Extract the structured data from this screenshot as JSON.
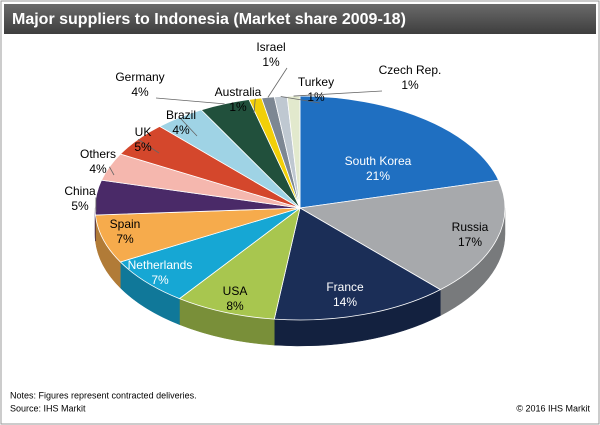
{
  "chart_data": {
    "type": "pie",
    "title": "Major suppliers to Indonesia (Market share 2009-18)",
    "categories": [
      "South Korea",
      "Russia",
      "France",
      "USA",
      "Netherlands",
      "Spain",
      "China",
      "Others",
      "UK",
      "Brazil",
      "Germany",
      "Australia",
      "Israel",
      "Turkey",
      "Czech Rep."
    ],
    "values": [
      21,
      17,
      14,
      8,
      7,
      7,
      5,
      4,
      5,
      4,
      4,
      1,
      1,
      1,
      1
    ],
    "value_labels": [
      "21%",
      "17%",
      "14%",
      "8%",
      "7%",
      "7%",
      "5%",
      "4%",
      "5%",
      "4%",
      "4%",
      "1%",
      "1%",
      "1%",
      "1%"
    ],
    "colors": [
      "#1f6fc1",
      "#a7a9ac",
      "#1b2e57",
      "#a8c64f",
      "#16a7d4",
      "#f6ab4c",
      "#4a2a68",
      "#f5b7ae",
      "#d4472c",
      "#9fd3e5",
      "#21503c",
      "#f2cf08",
      "#7d8793",
      "#bfc8d1",
      "#e2e9cd"
    ],
    "notes": "Notes: Figures represent contracted deliveries.",
    "source": "Source: IHS Markit",
    "copyright": "© 2016 IHS Markit"
  }
}
